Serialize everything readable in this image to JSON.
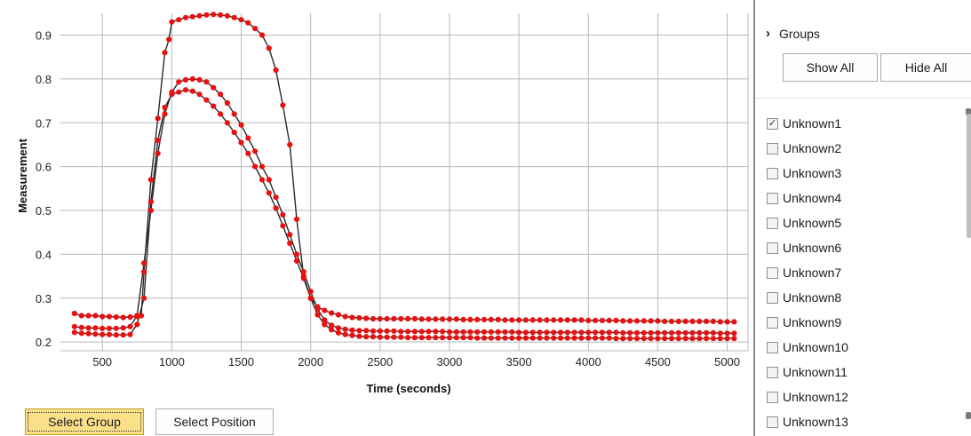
{
  "chart_data": {
    "type": "scatter",
    "xlabel": "Time (seconds)",
    "ylabel": "Measurement",
    "xlim": [
      70,
      5150
    ],
    "ylim": [
      0.18,
      0.98
    ],
    "x_ticks": [
      500,
      1000,
      1500,
      2000,
      2500,
      3000,
      3500,
      4000,
      4500,
      5000
    ],
    "y_ticks": [
      0.2,
      0.3,
      0.4,
      0.5,
      0.6,
      0.7,
      0.8,
      0.9
    ],
    "grid": true,
    "marker_color": "#e81010",
    "line_color": "#2a2a2a",
    "series": [
      {
        "x": [
          300,
          350,
          400,
          450,
          500,
          550,
          600,
          650,
          700,
          750,
          780,
          800,
          850,
          900,
          950,
          980,
          1000,
          1050,
          1100,
          1150,
          1200,
          1250,
          1300,
          1350,
          1400,
          1450,
          1500,
          1550,
          1600,
          1650,
          1700,
          1750,
          1800,
          1850,
          1900,
          1950,
          2000,
          2050,
          2100,
          2150,
          2200,
          2250,
          2300,
          2350,
          2400,
          2450,
          2500,
          2550,
          2600,
          2650,
          2700,
          2750,
          2800,
          2850,
          2900,
          2950,
          3000,
          3050,
          3100,
          3150,
          3200,
          3250,
          3300,
          3350,
          3400,
          3450,
          3500,
          3550,
          3600,
          3650,
          3700,
          3750,
          3800,
          3850,
          3900,
          3950,
          4000,
          4050,
          4100,
          4150,
          4200,
          4250,
          4300,
          4350,
          4400,
          4450,
          4500,
          4550,
          4600,
          4650,
          4700,
          4750,
          4800,
          4850,
          4900,
          4950,
          5000,
          5050
        ],
        "y": [
          0.265,
          0.26,
          0.26,
          0.26,
          0.258,
          0.258,
          0.257,
          0.256,
          0.257,
          0.258,
          0.26,
          0.36,
          0.57,
          0.71,
          0.86,
          0.89,
          0.93,
          0.935,
          0.94,
          0.942,
          0.944,
          0.946,
          0.947,
          0.946,
          0.944,
          0.94,
          0.935,
          0.928,
          0.915,
          0.9,
          0.87,
          0.82,
          0.74,
          0.65,
          0.48,
          0.35,
          0.3,
          0.28,
          0.272,
          0.266,
          0.262,
          0.258,
          0.256,
          0.255,
          0.254,
          0.253,
          0.253,
          0.253,
          0.253,
          0.253,
          0.253,
          0.253,
          0.252,
          0.252,
          0.252,
          0.252,
          0.252,
          0.252,
          0.251,
          0.251,
          0.251,
          0.251,
          0.251,
          0.251,
          0.25,
          0.25,
          0.25,
          0.25,
          0.25,
          0.25,
          0.25,
          0.25,
          0.25,
          0.25,
          0.25,
          0.25,
          0.249,
          0.249,
          0.249,
          0.249,
          0.249,
          0.248,
          0.248,
          0.248,
          0.248,
          0.248,
          0.248,
          0.247,
          0.247,
          0.247,
          0.247,
          0.247,
          0.247,
          0.247,
          0.247,
          0.246,
          0.246,
          0.246
        ]
      },
      {
        "x": [
          300,
          350,
          400,
          450,
          500,
          550,
          600,
          650,
          700,
          750,
          800,
          850,
          900,
          950,
          1000,
          1050,
          1100,
          1150,
          1200,
          1250,
          1300,
          1350,
          1400,
          1450,
          1500,
          1550,
          1600,
          1650,
          1700,
          1750,
          1800,
          1850,
          1900,
          1950,
          2000,
          2050,
          2100,
          2150,
          2200,
          2250,
          2300,
          2350,
          2400,
          2450,
          2500,
          2550,
          2600,
          2650,
          2700,
          2750,
          2800,
          2850,
          2900,
          2950,
          3000,
          3050,
          3100,
          3150,
          3200,
          3250,
          3300,
          3350,
          3400,
          3450,
          3500,
          3550,
          3600,
          3650,
          3700,
          3750,
          3800,
          3850,
          3900,
          3950,
          4000,
          4050,
          4100,
          4150,
          4200,
          4250,
          4300,
          4350,
          4400,
          4450,
          4500,
          4550,
          4600,
          4650,
          4700,
          4750,
          4800,
          4850,
          4900,
          4950,
          5000,
          5050
        ],
        "y": [
          0.235,
          0.233,
          0.232,
          0.232,
          0.231,
          0.231,
          0.231,
          0.232,
          0.235,
          0.26,
          0.38,
          0.5,
          0.63,
          0.72,
          0.77,
          0.793,
          0.798,
          0.8,
          0.798,
          0.793,
          0.78,
          0.765,
          0.745,
          0.72,
          0.695,
          0.665,
          0.635,
          0.6,
          0.57,
          0.53,
          0.49,
          0.445,
          0.4,
          0.36,
          0.315,
          0.275,
          0.25,
          0.238,
          0.232,
          0.229,
          0.227,
          0.226,
          0.226,
          0.225,
          0.225,
          0.225,
          0.225,
          0.224,
          0.224,
          0.224,
          0.224,
          0.224,
          0.224,
          0.224,
          0.223,
          0.223,
          0.223,
          0.223,
          0.223,
          0.223,
          0.223,
          0.223,
          0.223,
          0.223,
          0.222,
          0.222,
          0.222,
          0.222,
          0.222,
          0.222,
          0.222,
          0.222,
          0.222,
          0.222,
          0.222,
          0.222,
          0.222,
          0.222,
          0.222,
          0.221,
          0.221,
          0.221,
          0.221,
          0.221,
          0.221,
          0.221,
          0.221,
          0.221,
          0.221,
          0.221,
          0.221,
          0.221,
          0.221,
          0.22,
          0.22,
          0.22
        ]
      },
      {
        "x": [
          300,
          350,
          400,
          450,
          500,
          550,
          600,
          650,
          700,
          750,
          800,
          850,
          900,
          950,
          1000,
          1050,
          1100,
          1150,
          1200,
          1250,
          1300,
          1350,
          1400,
          1450,
          1500,
          1550,
          1600,
          1650,
          1700,
          1750,
          1800,
          1850,
          1900,
          1950,
          2000,
          2050,
          2100,
          2150,
          2200,
          2250,
          2300,
          2350,
          2400,
          2450,
          2500,
          2550,
          2600,
          2650,
          2700,
          2750,
          2800,
          2850,
          2900,
          2950,
          3000,
          3050,
          3100,
          3150,
          3200,
          3250,
          3300,
          3350,
          3400,
          3450,
          3500,
          3550,
          3600,
          3650,
          3700,
          3750,
          3800,
          3850,
          3900,
          3950,
          4000,
          4050,
          4100,
          4150,
          4200,
          4250,
          4300,
          4350,
          4400,
          4450,
          4500,
          4550,
          4600,
          4650,
          4700,
          4750,
          4800,
          4850,
          4900,
          4950,
          5000,
          5050
        ],
        "y": [
          0.222,
          0.22,
          0.219,
          0.218,
          0.217,
          0.217,
          0.216,
          0.216,
          0.217,
          0.24,
          0.3,
          0.52,
          0.66,
          0.735,
          0.765,
          0.77,
          0.775,
          0.772,
          0.765,
          0.752,
          0.738,
          0.72,
          0.7,
          0.678,
          0.655,
          0.63,
          0.6,
          0.57,
          0.54,
          0.505,
          0.465,
          0.425,
          0.385,
          0.345,
          0.3,
          0.262,
          0.24,
          0.228,
          0.221,
          0.217,
          0.215,
          0.213,
          0.212,
          0.212,
          0.211,
          0.211,
          0.211,
          0.211,
          0.21,
          0.21,
          0.21,
          0.21,
          0.21,
          0.21,
          0.21,
          0.21,
          0.21,
          0.21,
          0.209,
          0.209,
          0.209,
          0.209,
          0.209,
          0.209,
          0.209,
          0.209,
          0.209,
          0.209,
          0.209,
          0.209,
          0.209,
          0.209,
          0.209,
          0.209,
          0.209,
          0.209,
          0.209,
          0.209,
          0.208,
          0.208,
          0.208,
          0.208,
          0.208,
          0.208,
          0.208,
          0.208,
          0.208,
          0.208,
          0.208,
          0.208,
          0.208,
          0.208,
          0.208,
          0.208,
          0.208,
          0.208
        ]
      }
    ]
  },
  "buttons": {
    "select_group": "Select Group",
    "select_position": "Select Position"
  },
  "panel": {
    "groups_label": "Groups",
    "show_all": "Show All",
    "hide_all": "Hide All",
    "items": [
      {
        "label": "Unknown1",
        "checked": true
      },
      {
        "label": "Unknown2",
        "checked": false
      },
      {
        "label": "Unknown3",
        "checked": false
      },
      {
        "label": "Unknown4",
        "checked": false
      },
      {
        "label": "Unknown5",
        "checked": false
      },
      {
        "label": "Unknown6",
        "checked": false
      },
      {
        "label": "Unknown7",
        "checked": false
      },
      {
        "label": "Unknown8",
        "checked": false
      },
      {
        "label": "Unknown9",
        "checked": false
      },
      {
        "label": "Unknown10",
        "checked": false
      },
      {
        "label": "Unknown11",
        "checked": false
      },
      {
        "label": "Unknown12",
        "checked": false
      },
      {
        "label": "Unknown13",
        "checked": false
      }
    ]
  }
}
